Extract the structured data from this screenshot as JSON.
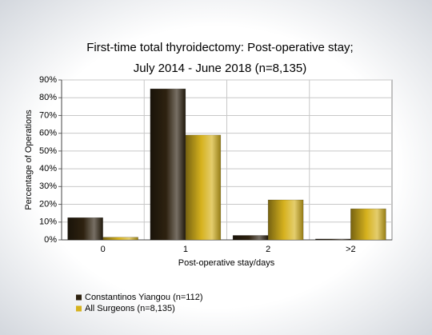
{
  "chart_data": {
    "type": "bar",
    "title": [
      "First-time total thyroidectomy: Post-operative stay;",
      "July 2014 - June 2018 (n=8,135)"
    ],
    "x_label": "Post-operative stay/days",
    "y_label": "Percentage of Operations",
    "categories": [
      "0",
      "1",
      "2",
      ">2"
    ],
    "series": [
      {
        "name": "Constantinos Yiangou (n=112)",
        "color": "#2e2210",
        "values": [
          12.5,
          85,
          2.5,
          0.5
        ]
      },
      {
        "name": "All Surgeons (n=8,135)",
        "color": "#d6b21e",
        "values": [
          1.5,
          59,
          22.5,
          17.5
        ]
      }
    ],
    "ylim": [
      0,
      90
    ],
    "yticks": [
      {
        "value": 0,
        "label": "0%"
      },
      {
        "value": 10,
        "label": "10%"
      },
      {
        "value": 20,
        "label": "20%"
      },
      {
        "value": 30,
        "label": "30%"
      },
      {
        "value": 40,
        "label": "40%"
      },
      {
        "value": 50,
        "label": "50%"
      },
      {
        "value": 60,
        "label": "60%"
      },
      {
        "value": 70,
        "label": "70%"
      },
      {
        "value": 80,
        "label": "80%"
      },
      {
        "value": 90,
        "label": "90%"
      }
    ],
    "grid": true
  }
}
